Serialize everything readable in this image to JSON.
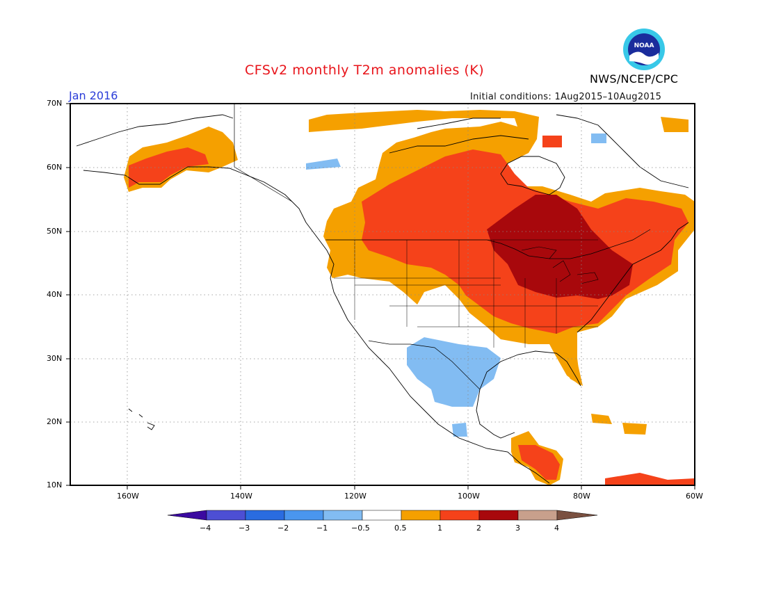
{
  "header": {
    "title": "CFSv2 monthly T2m anomalies (K)",
    "month": "Jan 2016",
    "initial_conditions": "Initial conditions: 1Aug2015–10Aug2015",
    "agency": "NWS/NCEP/CPC",
    "logo_text": "NOAA"
  },
  "map": {
    "lat_labels": [
      "70N",
      "60N",
      "50N",
      "40N",
      "30N",
      "20N",
      "10N"
    ],
    "lon_labels": [
      "160W",
      "140W",
      "120W",
      "100W",
      "80W",
      "60W"
    ],
    "lat_range": [
      10,
      70
    ],
    "lon_range": [
      -171,
      -60
    ],
    "gridlines": "dotted"
  },
  "colorbar": {
    "labels": [
      "−4",
      "−3",
      "−2",
      "−1",
      "−0.5",
      "0.5",
      "1",
      "2",
      "3",
      "4"
    ],
    "colors": [
      "#3b0aa0",
      "#4d4fd4",
      "#2a6ce0",
      "#4a96ee",
      "#82bcf2",
      "#ffffff",
      "#f5a000",
      "#f5421a",
      "#a8080c",
      "#c8a08c",
      "#7a5040"
    ]
  },
  "anomaly_colors": {
    "warm1": "#f5a000",
    "warm2": "#f5421a",
    "warm3": "#a8080c",
    "cool1": "#82bcf2",
    "cool2": "#4a96ee"
  }
}
